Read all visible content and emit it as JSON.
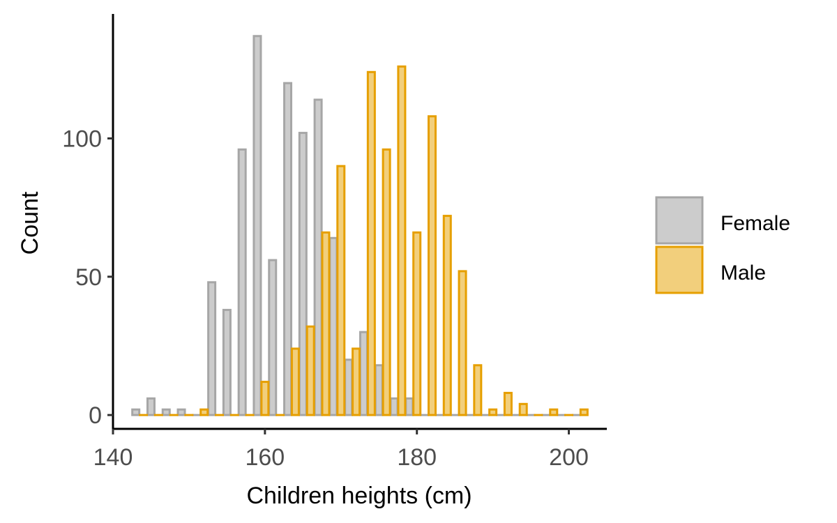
{
  "chart_data": {
    "type": "bar",
    "xlabel": "Children heights (cm)",
    "ylabel": "Count",
    "xlim": [
      140,
      205
    ],
    "ylim": [
      -5,
      145
    ],
    "x_ticks": [
      140,
      160,
      180,
      200
    ],
    "y_ticks": [
      0,
      50,
      100
    ],
    "grid": false,
    "legend_position": "right",
    "series": [
      {
        "name": "Female",
        "fill": "#cccccc",
        "stroke": "#a6a6a6",
        "x": [
          143,
          145,
          147,
          149,
          151,
          153,
          155,
          157,
          159,
          161,
          163,
          165,
          167,
          169,
          171,
          173,
          175,
          177,
          179,
          181,
          183,
          185,
          187,
          189,
          191,
          193,
          195,
          197,
          199,
          201
        ],
        "values": [
          2,
          6,
          2,
          2,
          0,
          48,
          38,
          96,
          137,
          56,
          120,
          102,
          114,
          64,
          20,
          30,
          18,
          6,
          6,
          0,
          0,
          0,
          0,
          0,
          0,
          0,
          0,
          0,
          0,
          0
        ]
      },
      {
        "name": "Male",
        "fill": "#f2cf7c",
        "stroke": "#e69f00",
        "x": [
          144,
          146,
          148,
          150,
          152,
          154,
          156,
          158,
          160,
          162,
          164,
          166,
          168,
          170,
          172,
          174,
          176,
          178,
          180,
          182,
          184,
          186,
          188,
          190,
          192,
          194,
          196,
          198,
          200,
          202
        ],
        "values": [
          0,
          0,
          0,
          0,
          2,
          0,
          0,
          0,
          12,
          0,
          24,
          32,
          66,
          90,
          24,
          124,
          96,
          126,
          66,
          108,
          72,
          52,
          18,
          2,
          8,
          4,
          0,
          2,
          0,
          2
        ]
      }
    ]
  }
}
